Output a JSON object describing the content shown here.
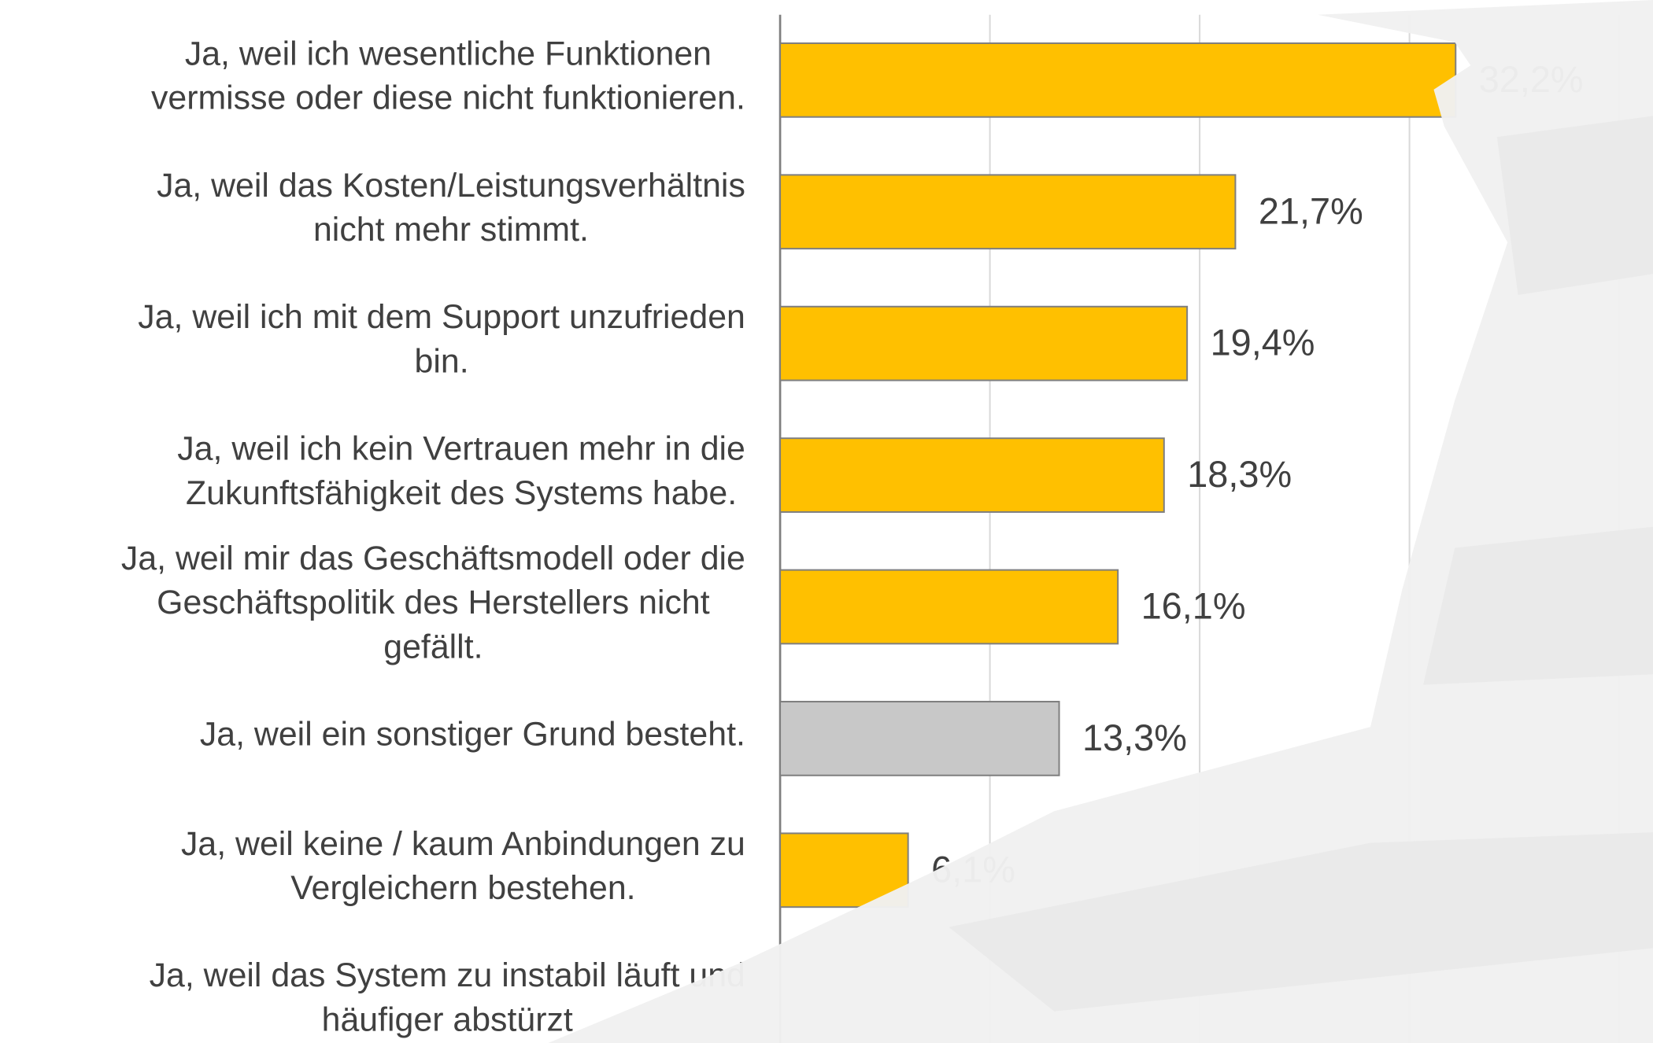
{
  "chart_data": {
    "type": "hbar",
    "categories": [
      [
        "Ja, weil ich wesentliche Funktionen",
        "vermisse oder diese nicht funktionieren."
      ],
      [
        "Ja, weil das Kosten/Leistungsverhältnis",
        "nicht mehr stimmt."
      ],
      [
        "Ja, weil ich mit dem Support unzufrieden",
        "bin."
      ],
      [
        "Ja, weil ich kein Vertrauen mehr in die",
        "Zukunftsfähigkeit des Systems habe."
      ],
      [
        "Ja, weil mir das Geschäftsmodell oder die",
        "Geschäftspolitik des Herstellers nicht",
        "gefällt."
      ],
      [
        "Ja, weil ein sonstiger Grund besteht."
      ],
      [
        "Ja, weil keine / kaum Anbindungen zu",
        "Vergleichern bestehen."
      ],
      [
        "Ja, weil das System zu instabil läuft und",
        "häufiger abstürzt"
      ]
    ],
    "values": [
      32.2,
      21.7,
      19.4,
      18.3,
      16.1,
      13.3,
      6.1,
      null
    ],
    "value_labels": [
      "32,2%",
      "21,7%",
      "19,4%",
      "18,3%",
      "16,1%",
      "13,3%",
      "6,1%",
      null
    ],
    "colors": [
      "#ffc000",
      "#ffc000",
      "#ffc000",
      "#ffc000",
      "#ffc000",
      "#c8c8c8",
      "#ffc000",
      "#ffc000"
    ],
    "xlim": [
      0,
      40
    ],
    "xticks": [
      0,
      10,
      20,
      30,
      40
    ],
    "grid": true
  }
}
